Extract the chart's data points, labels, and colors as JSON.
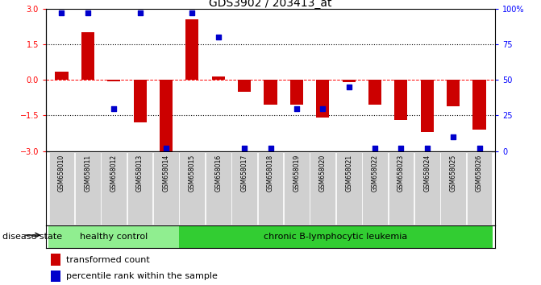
{
  "title": "GDS3902 / 203413_at",
  "samples": [
    "GSM658010",
    "GSM658011",
    "GSM658012",
    "GSM658013",
    "GSM658014",
    "GSM658015",
    "GSM658016",
    "GSM658017",
    "GSM658018",
    "GSM658019",
    "GSM658020",
    "GSM658021",
    "GSM658022",
    "GSM658023",
    "GSM658024",
    "GSM658025",
    "GSM658026"
  ],
  "bar_values": [
    0.35,
    2.0,
    -0.05,
    -1.8,
    -3.0,
    2.55,
    0.15,
    -0.5,
    -1.05,
    -1.05,
    -1.6,
    -0.1,
    -1.05,
    -1.7,
    -2.2,
    -1.1,
    -2.1
  ],
  "dot_values_pct": [
    97,
    97,
    30,
    97,
    2,
    97,
    80,
    2,
    2,
    30,
    30,
    45,
    2,
    2,
    2,
    10,
    2
  ],
  "ylim": [
    -3,
    3
  ],
  "y2lim": [
    0,
    100
  ],
  "yticks": [
    -3,
    -1.5,
    0,
    1.5,
    3
  ],
  "y2ticks": [
    0,
    25,
    50,
    75,
    100
  ],
  "y2ticklabels": [
    "0",
    "25",
    "50",
    "75",
    "100%"
  ],
  "bar_color": "#cc0000",
  "dot_color": "#0000cc",
  "healthy_label": "healthy control",
  "disease_label": "chronic B-lymphocytic leukemia",
  "healthy_count": 5,
  "disease_count": 12,
  "legend_bar_label": "transformed count",
  "legend_dot_label": "percentile rank within the sample",
  "disease_state_label": "disease state",
  "title_fontsize": 10,
  "tick_label_fontsize": 7,
  "annotation_fontsize": 8,
  "sample_fontsize": 5.5,
  "healthy_bg": "#90ee90",
  "disease_bg": "#32cd32",
  "label_area_bg": "#d0d0d0",
  "bar_width": 0.5
}
